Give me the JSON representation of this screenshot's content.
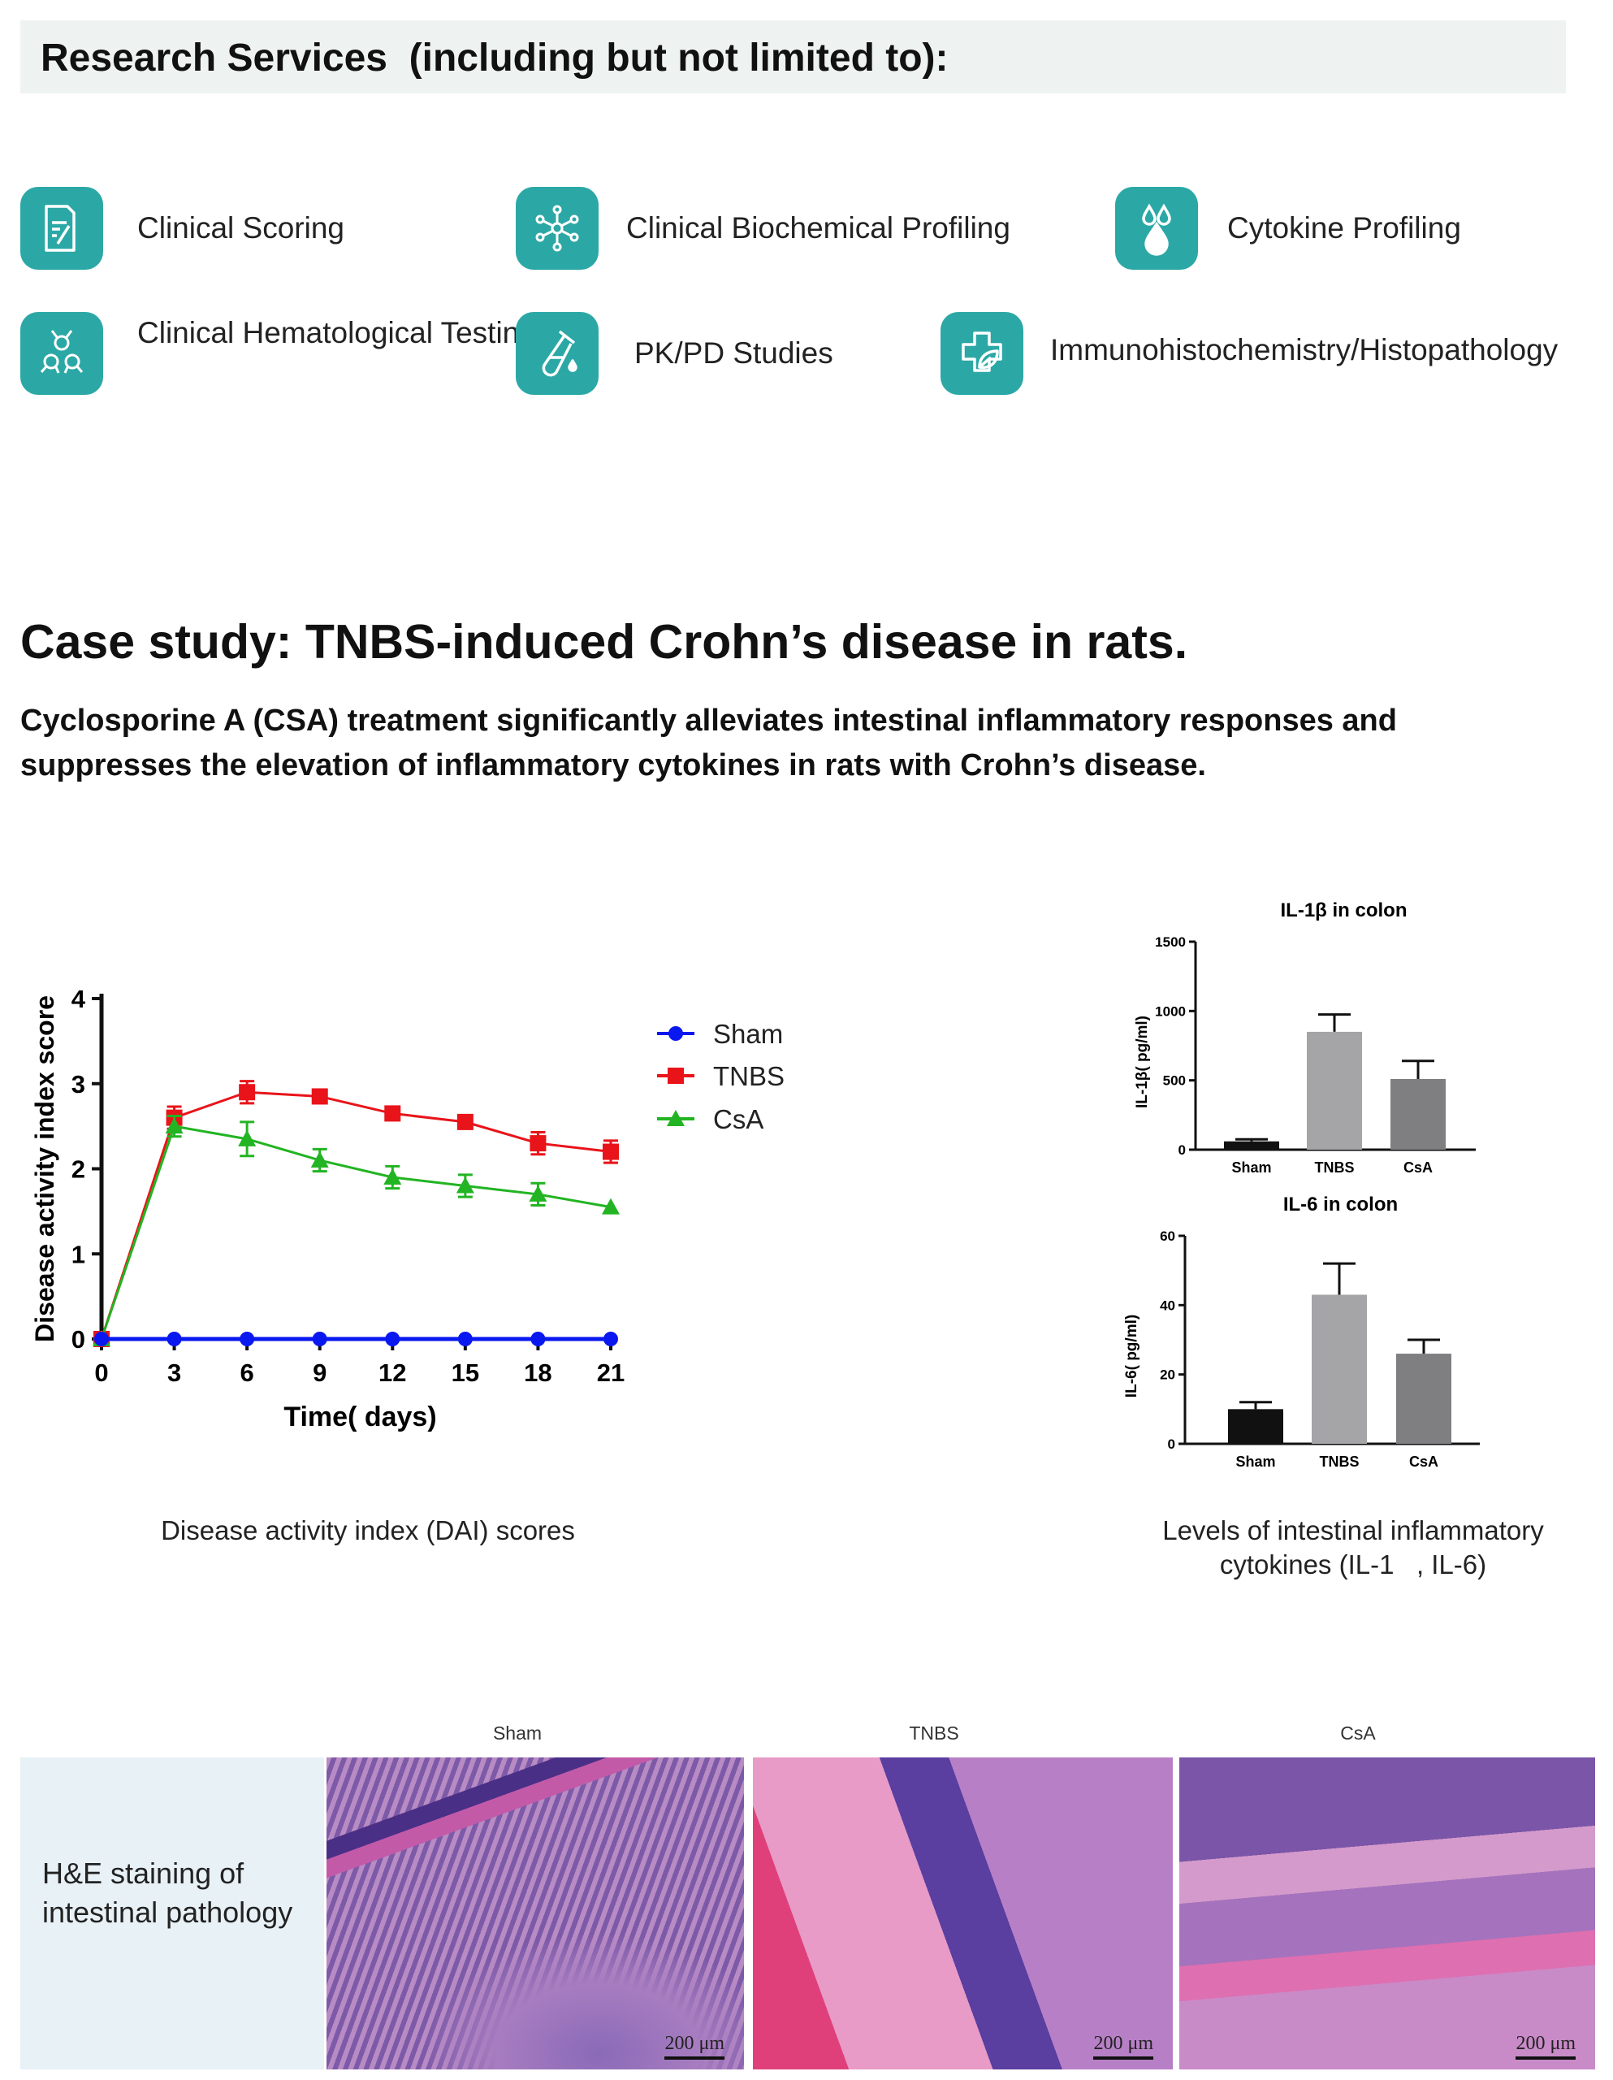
{
  "header": {
    "title": "Research Services  (including but not limited to):"
  },
  "services": [
    {
      "label": "Clinical Scoring",
      "icon": "document-edit-icon"
    },
    {
      "label": "Clinical Biochemical Profiling",
      "icon": "molecule-network-icon"
    },
    {
      "label": "Cytokine Profiling",
      "icon": "droplets-icon"
    },
    {
      "label": "Clinical Hematological Testing",
      "icon": "cells-icon"
    },
    {
      "label": "PK/PD Studies",
      "icon": "test-tube-icon"
    },
    {
      "label": "Immunohistochemistry/Histopathology",
      "icon": "leaf-cross-icon"
    }
  ],
  "case_study": {
    "title": "Case study: TNBS-induced Crohn’s disease in rats.",
    "description": "Cyclosporine A (CSA) treatment significantly alleviates intestinal inflammatory responses and suppresses the elevation of inflammatory cytokines in rats with Crohn’s disease."
  },
  "captions": {
    "dai": "Disease activity index (DAI) scores",
    "cytokines_line1": "Levels of intestinal inflammatory",
    "cytokines_line2": "cytokines (IL-1   , IL-6)"
  },
  "histology": {
    "label_line1": "H&E staining of",
    "label_line2": "intestinal pathology",
    "panels": [
      {
        "label": "Sham",
        "scale": "200 μm"
      },
      {
        "label": "TNBS",
        "scale": "200 μm"
      },
      {
        "label": "CsA",
        "scale": "200 μm"
      }
    ]
  },
  "colors": {
    "accent": "#2ba8a6",
    "sham": "#0a18f0",
    "tnbs": "#e8141a",
    "csa": "#22b422"
  },
  "chart_data": [
    {
      "type": "line",
      "title": "",
      "xlabel": "Time( days)",
      "ylabel": "Disease activity index score",
      "x": [
        0,
        3,
        6,
        9,
        12,
        15,
        18,
        21
      ],
      "xticks": [
        "0",
        "3",
        "6",
        "9",
        "12",
        "15",
        "18",
        "21"
      ],
      "yticks": [
        "0",
        "1",
        "2",
        "3",
        "4"
      ],
      "ylim": [
        0,
        4
      ],
      "xlim": [
        0,
        21
      ],
      "legend": "top-right",
      "series": [
        {
          "name": "Sham",
          "marker": "circle",
          "values": [
            0,
            0,
            0,
            0,
            0,
            0,
            0,
            0
          ],
          "errors": [
            0,
            0,
            0,
            0,
            0,
            0,
            0,
            0
          ]
        },
        {
          "name": "TNBS",
          "marker": "square",
          "values": [
            0,
            2.6,
            2.9,
            2.85,
            2.65,
            2.55,
            2.3,
            2.2
          ],
          "errors": [
            0,
            0.13,
            0.13,
            0.05,
            0.07,
            0.05,
            0.13,
            0.13
          ]
        },
        {
          "name": "CsA",
          "marker": "triangle",
          "values": [
            0,
            2.5,
            2.35,
            2.1,
            1.9,
            1.8,
            1.7,
            1.55
          ],
          "errors": [
            0,
            0.12,
            0.2,
            0.13,
            0.13,
            0.13,
            0.13,
            0
          ]
        }
      ]
    },
    {
      "type": "bar",
      "title": "IL-1β in colon",
      "ylabel": "IL-1β( pg/ml)",
      "categories": [
        "Sham",
        "TNBS",
        "CsA"
      ],
      "values": [
        60,
        850,
        510
      ],
      "errors": [
        15,
        125,
        130
      ],
      "bar_colors": [
        "#111111",
        "#a5a5a8",
        "#7f7f82"
      ],
      "yticks": [
        "0",
        "500",
        "1000",
        "1500"
      ],
      "ylim": [
        0,
        1500
      ]
    },
    {
      "type": "bar",
      "title": "IL-6 in colon",
      "ylabel": "IL-6( pg/ml)",
      "categories": [
        "Sham",
        "TNBS",
        "CsA"
      ],
      "values": [
        10,
        43,
        26
      ],
      "errors": [
        2,
        9,
        4
      ],
      "bar_colors": [
        "#111111",
        "#a5a5a8",
        "#7f7f82"
      ],
      "yticks": [
        "0",
        "20",
        "40",
        "60"
      ],
      "ylim": [
        0,
        60
      ]
    }
  ]
}
